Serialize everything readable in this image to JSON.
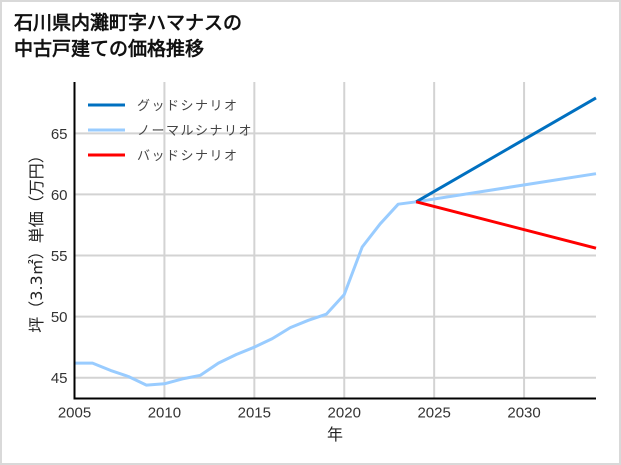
{
  "title_line1": "石川県内灘町字ハマナスの",
  "title_line2": "中古戸建ての価格推移",
  "chart_data": {
    "type": "line",
    "title": "石川県内灘町字ハマナスの中古戸建ての価格推移",
    "xlabel": "年",
    "ylabel": "坪（3.3㎡）単価（万円）",
    "xlim": [
      2005,
      2034
    ],
    "ylim": [
      43.3,
      69.2
    ],
    "xticks": [
      2005,
      2010,
      2015,
      2020,
      2025,
      2030
    ],
    "yticks": [
      45,
      50,
      55,
      60,
      65
    ],
    "grid": true,
    "legend_position": "upper left",
    "series": [
      {
        "name": "グッドシナリオ",
        "color": "#0070C0",
        "x": [
          2024,
          2034
        ],
        "values": [
          59.4,
          67.9
        ]
      },
      {
        "name": "ノーマルシナリオ",
        "color": "#99CCFF",
        "x": [
          2005,
          2006,
          2007,
          2008,
          2009,
          2010,
          2011,
          2012,
          2013,
          2014,
          2015,
          2016,
          2017,
          2018,
          2019,
          2020,
          2021,
          2022,
          2023,
          2024,
          2034
        ],
        "values": [
          46.2,
          46.2,
          45.6,
          45.1,
          44.4,
          44.5,
          44.9,
          45.2,
          46.2,
          46.9,
          47.5,
          48.2,
          49.1,
          49.7,
          50.2,
          51.8,
          55.7,
          57.6,
          59.2,
          59.4,
          61.7
        ]
      },
      {
        "name": "バッドシナリオ",
        "color": "#FF0000",
        "x": [
          2024,
          2034
        ],
        "values": [
          59.4,
          55.6
        ]
      }
    ]
  }
}
